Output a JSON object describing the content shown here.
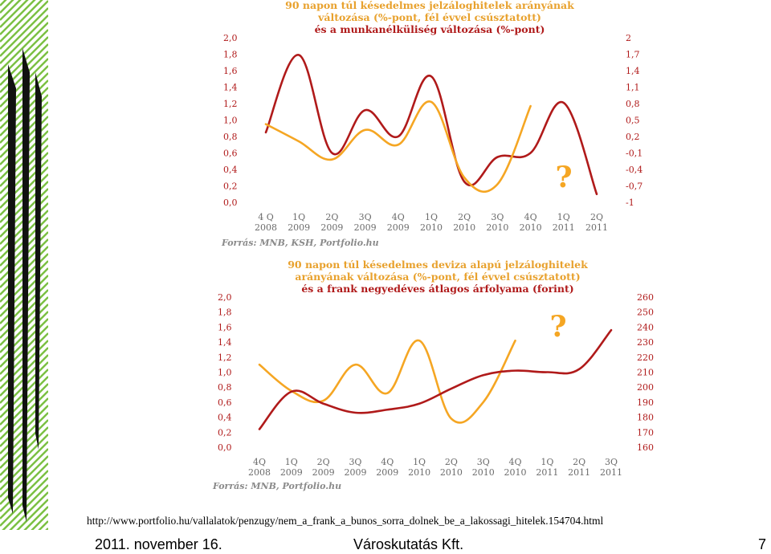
{
  "colors": {
    "dark_red": "#b01a1a",
    "orange": "#f5a623",
    "title_orange": "#e8a12d",
    "axis_label": "#6b6b6b",
    "stripe_green": "#7bc043",
    "bar_black": "#111111"
  },
  "url": "http://www.portfolio.hu/vallalatok/penzugy/nem_a_frank_a_bunos_sorra_dolnek_be_a_lakossagi_hitelek.154704.html",
  "footer": {
    "date": "2011. november 16.",
    "org": "Városkutatás Kft.",
    "page": "7"
  },
  "chart_data": [
    {
      "type": "line",
      "title_lines": [
        "90 napon túl késedelmes jelzáloghitelek arányának",
        "változása (%-pont, fél évvel csúsztatott)",
        "és a munkanélküliség változása (%-pont)"
      ],
      "source": "Forrás: MNB, KSH, Portfolio.hu",
      "annotation": "?",
      "categories": [
        [
          "4 Q",
          "2008"
        ],
        [
          "1Q",
          "2009"
        ],
        [
          "2Q",
          "2009"
        ],
        [
          "3Q",
          "2009"
        ],
        [
          "4Q",
          "2009"
        ],
        [
          "1Q",
          "2010"
        ],
        [
          "2Q",
          "2010"
        ],
        [
          "3Q",
          "2010"
        ],
        [
          "4Q",
          "2010"
        ],
        [
          "1Q",
          "2011"
        ],
        [
          "2Q",
          "2011"
        ]
      ],
      "y_left": {
        "ticks": [
          "2,0",
          "1,8",
          "1,6",
          "1,4",
          "1,2",
          "1,0",
          "0,8",
          "0,6",
          "0,4",
          "0,2",
          "0,0"
        ],
        "ylim": [
          0,
          2.0
        ]
      },
      "y_right": {
        "ticks": [
          "2",
          "1,7",
          "1,4",
          "1,1",
          "0,8",
          "0,5",
          "0,2",
          "-0,1",
          "-0,4",
          "-0,7",
          "-1"
        ],
        "ylim": [
          -1,
          2
        ]
      },
      "series": [
        {
          "axis": "left",
          "color": "#b01a1a",
          "values": [
            0.85,
            1.79,
            0.6,
            1.12,
            0.8,
            1.53,
            0.25,
            0.55,
            0.6,
            1.21,
            0.1
          ]
        },
        {
          "axis": "left",
          "color": "#f5a623",
          "values": [
            0.95,
            0.74,
            0.52,
            0.88,
            0.7,
            1.22,
            0.3,
            0.22,
            1.17,
            null,
            null
          ]
        }
      ]
    },
    {
      "type": "line",
      "title_lines": [
        "90 napon túl késedelmes deviza alapú jelzáloghitelek",
        "arányának változása (%-pont, fél évvel csúsztatott)",
        "és a frank negyedéves átlagos árfolyama (forint)"
      ],
      "source": "Forrás: MNB, Portfolio.hu",
      "annotation": "?",
      "categories": [
        [
          "4Q",
          "2008"
        ],
        [
          "1Q",
          "2009"
        ],
        [
          "2Q",
          "2009"
        ],
        [
          "3Q",
          "2009"
        ],
        [
          "4Q",
          "2009"
        ],
        [
          "1Q",
          "2010"
        ],
        [
          "2Q",
          "2010"
        ],
        [
          "3Q",
          "2010"
        ],
        [
          "4Q",
          "2010"
        ],
        [
          "1Q",
          "2011"
        ],
        [
          "2Q",
          "2011"
        ],
        [
          "3Q",
          "2011"
        ]
      ],
      "y_left": {
        "ticks": [
          "2,0",
          "1,8",
          "1,6",
          "1,4",
          "1,2",
          "1,0",
          "0,8",
          "0,6",
          "0,4",
          "0,2",
          "0,0"
        ],
        "ylim": [
          0,
          2.0
        ]
      },
      "y_right": {
        "ticks": [
          "260",
          "250",
          "240",
          "230",
          "220",
          "210",
          "200",
          "190",
          "180",
          "170",
          "160"
        ],
        "ylim": [
          160,
          260
        ]
      },
      "series": [
        {
          "axis": "left",
          "color": "#f5a623",
          "values": [
            1.1,
            0.75,
            0.62,
            1.1,
            0.72,
            1.42,
            0.38,
            0.6,
            1.42,
            null,
            null,
            null
          ]
        },
        {
          "axis": "right",
          "color": "#b01a1a",
          "values": [
            172,
            197,
            189,
            183,
            185,
            189,
            199,
            208,
            211,
            210,
            212,
            238
          ]
        }
      ]
    }
  ]
}
